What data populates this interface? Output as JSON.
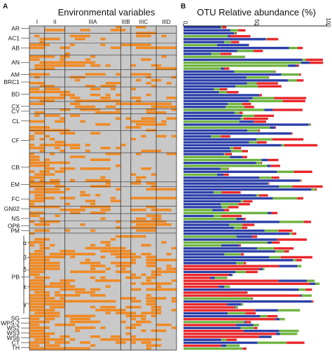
{
  "chart_data": [
    {
      "type": "heatmap",
      "panel_label": "A",
      "title": "Environmental variables",
      "column_groups": [
        "I",
        "II",
        "IIIA",
        "IIIB",
        "IIIC",
        "IIID"
      ],
      "column_counts": [
        3,
        4,
        11,
        2,
        5,
        4
      ],
      "row_count": 110,
      "cell_colors": {
        "absent": "#c8c8c8",
        "present": "#f08a24"
      },
      "group_labels": [
        {
          "label": "AR",
          "row": 1
        },
        {
          "label": "AC1",
          "row": 5
        },
        {
          "label": "AB",
          "row": 9
        },
        {
          "label": "AN",
          "row": 15
        },
        {
          "label": "AM",
          "row": 20
        },
        {
          "label": "BRC1",
          "row": 23
        },
        {
          "label": "BD",
          "row": 28
        },
        {
          "label": "CX",
          "row": 33
        },
        {
          "label": "CY",
          "row": 35
        },
        {
          "label": "CL",
          "row": 39
        },
        {
          "label": "CF",
          "row": 47
        },
        {
          "label": "CB",
          "row": 58
        },
        {
          "label": "EM",
          "row": 65
        },
        {
          "label": "FC",
          "row": 71
        },
        {
          "label": "GN02",
          "row": 75
        },
        {
          "label": "NS",
          "row": 79
        },
        {
          "label": "OP8",
          "row": 82
        },
        {
          "label": "PM",
          "row": 84
        },
        {
          "label": "α",
          "row": 89
        },
        {
          "label": "β",
          "row": 95
        },
        {
          "label": "PB",
          "row": 103
        },
        {
          "label": "δ",
          "row": 100
        },
        {
          "label": "ε",
          "row": 107
        },
        {
          "label": "γ",
          "row": 114
        },
        {
          "label": "SG",
          "row": 120
        },
        {
          "label": "WPS-2",
          "row": 122
        },
        {
          "label": "WS2",
          "row": 124
        },
        {
          "label": "WS3",
          "row": 126
        },
        {
          "label": "WS6",
          "row": 128
        },
        {
          "label": "CT",
          "row": 130
        },
        {
          "label": "TH",
          "row": 132
        }
      ]
    },
    {
      "type": "bar",
      "orientation": "horizontal",
      "stacked": true,
      "panel_label": "B",
      "title": "OTU Relative abundance (%)",
      "xlim": [
        0,
        100
      ],
      "x_ticks": [
        "0",
        "50",
        "100"
      ],
      "row_count": 110,
      "series": [
        {
          "color": "#2b3fa8"
        },
        {
          "color": "#6db33f"
        },
        {
          "color": "#e8262a"
        }
      ]
    }
  ]
}
